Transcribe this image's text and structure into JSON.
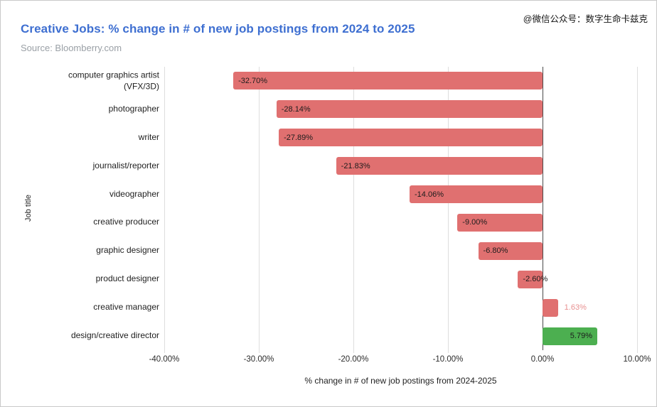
{
  "header": {
    "title": "Creative Jobs: % change in # of new job postings from 2024 to 2025",
    "source": "Source: Bloomberry.com",
    "watermark": "@微信公众号：数字生命卡兹克"
  },
  "colors": {
    "title_blue": "#3e6fd1",
    "source_gray": "#9aa0a6",
    "bar_red": "#e07070",
    "bar_green": "#4caf50",
    "gridline": "#dedede",
    "zero_line": "#4a4a4a"
  },
  "chart_data": {
    "type": "bar",
    "orientation": "horizontal",
    "title": "Creative Jobs: % change in # of new job postings from 2024 to 2025",
    "source": "Source: Bloomberry.com",
    "xlabel": "% change in # of new job postings from 2024-2025",
    "ylabel": "Job title",
    "xlim": [
      -40,
      10
    ],
    "grid": "vertical light gridlines, dark zero line, no bottom axis line",
    "legend": "none",
    "x_tick_values": [
      -40,
      -30,
      -20,
      -10,
      0,
      10
    ],
    "x_tick_labels": [
      "-40.00%",
      "-30.00%",
      "-20.00%",
      "-10.00%",
      "0.00%",
      "10.00%"
    ],
    "categories": [
      "computer graphics artist\n(VFX/3D)",
      "photographer",
      "writer",
      "journalist/reporter",
      "videographer",
      "creative producer",
      "graphic designer",
      "product designer",
      "creative manager",
      "design/creative director"
    ],
    "values": [
      -32.7,
      -28.14,
      -27.89,
      -21.83,
      -14.06,
      -9.0,
      -6.8,
      -2.6,
      1.63,
      5.79
    ],
    "value_labels": [
      "-32.70%",
      "-28.14%",
      "-27.89%",
      "-21.83%",
      "-14.06%",
      "-9.00%",
      "-6.80%",
      "-2.60%",
      "1.63%",
      "5.79%"
    ],
    "bar_colors": [
      "#e07070",
      "#e07070",
      "#e07070",
      "#e07070",
      "#e07070",
      "#e07070",
      "#e07070",
      "#e07070",
      "#e07070",
      "#4caf50"
    ],
    "label_positions": [
      "inside-left",
      "inside-left",
      "inside-left",
      "inside-left",
      "inside-left",
      "inside-left",
      "inside-left",
      "inside-left",
      "outside-right",
      "inside-right"
    ],
    "label_colors": [
      "#1c1c1c",
      "#1c1c1c",
      "#1c1c1c",
      "#1c1c1c",
      "#1c1c1c",
      "#1c1c1c",
      "#1c1c1c",
      "#1c1c1c",
      "#e89090",
      "#1c1c1c"
    ]
  }
}
